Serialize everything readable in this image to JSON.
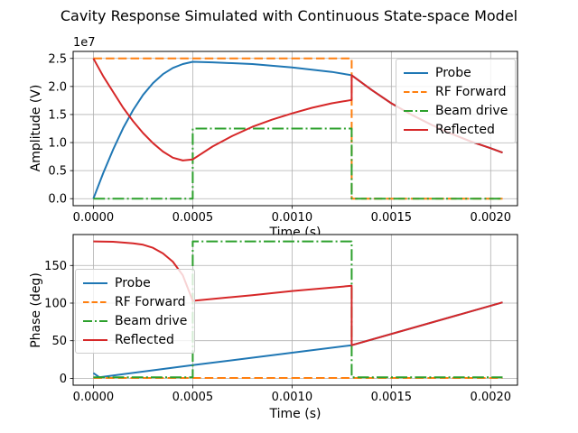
{
  "figure": {
    "title": "Cavity Response Simulated with Continuous State-space Model",
    "background": "#ffffff",
    "grid_color": "#b0b0b0",
    "spine_color": "#000000",
    "legend_border_color": "#cccccc"
  },
  "chart_data": [
    {
      "type": "line",
      "title": "",
      "xlabel": "Time (s)",
      "ylabel": "Amplitude (V)",
      "offset_text": "1e7",
      "y_units_note": "y values in units of 1e7 V",
      "grid": true,
      "legend_position": "upper-right",
      "xlim": [
        -0.000102,
        0.002135
      ],
      "ylim": [
        -0.125,
        2.625
      ],
      "xticks": {
        "values": [
          0,
          0.0005,
          0.001,
          0.0015,
          0.002
        ],
        "labels": [
          "0.0000",
          "0.0005",
          "0.0010",
          "0.0015",
          "0.0020"
        ]
      },
      "yticks": {
        "values": [
          0,
          0.5,
          1.0,
          1.5,
          2.0,
          2.5
        ],
        "labels": [
          "0.0",
          "0.5",
          "1.0",
          "1.5",
          "2.0",
          "2.5"
        ]
      },
      "series": [
        {
          "name": "Probe",
          "color": "#1f77b4",
          "style": "solid",
          "points": [
            [
              0,
              0
            ],
            [
              5e-05,
              0.46
            ],
            [
              0.0001,
              0.88
            ],
            [
              0.00015,
              1.26
            ],
            [
              0.0002,
              1.58
            ],
            [
              0.00025,
              1.85
            ],
            [
              0.0003,
              2.06
            ],
            [
              0.00035,
              2.22
            ],
            [
              0.0004,
              2.33
            ],
            [
              0.00045,
              2.4
            ],
            [
              0.0005,
              2.44
            ],
            [
              0.0006,
              2.43
            ],
            [
              0.0008,
              2.4
            ],
            [
              0.001,
              2.34
            ],
            [
              0.0012,
              2.26
            ],
            [
              0.0013,
              2.2
            ],
            [
              0.0014,
              1.94
            ],
            [
              0.0015,
              1.7
            ],
            [
              0.0016,
              1.5
            ],
            [
              0.0017,
              1.32
            ],
            [
              0.0018,
              1.16
            ],
            [
              0.0019,
              1.02
            ],
            [
              0.002,
              0.9
            ],
            [
              0.00206,
              0.82
            ]
          ]
        },
        {
          "name": "RF Forward",
          "color": "#ff7f0e",
          "style": "dashed",
          "points": [
            [
              0,
              2.5
            ],
            [
              0.0013,
              2.5
            ],
            [
              0.0013,
              0
            ],
            [
              0.00206,
              0
            ]
          ]
        },
        {
          "name": "Beam drive",
          "color": "#2ca02c",
          "style": "dashdot",
          "points": [
            [
              0,
              0
            ],
            [
              0.0005,
              0
            ],
            [
              0.0005,
              1.25
            ],
            [
              0.0013,
              1.25
            ],
            [
              0.0013,
              0
            ],
            [
              0.00206,
              0
            ]
          ]
        },
        {
          "name": "Reflected",
          "color": "#d62728",
          "style": "solid",
          "points": [
            [
              0,
              2.5
            ],
            [
              5e-05,
              2.18
            ],
            [
              0.0001,
              1.9
            ],
            [
              0.00015,
              1.62
            ],
            [
              0.0002,
              1.38
            ],
            [
              0.00025,
              1.17
            ],
            [
              0.0003,
              0.99
            ],
            [
              0.00035,
              0.84
            ],
            [
              0.0004,
              0.73
            ],
            [
              0.00045,
              0.68
            ],
            [
              0.0005,
              0.7
            ],
            [
              0.0006,
              0.93
            ],
            [
              0.0007,
              1.12
            ],
            [
              0.0008,
              1.28
            ],
            [
              0.0009,
              1.41
            ],
            [
              0.001,
              1.52
            ],
            [
              0.0011,
              1.62
            ],
            [
              0.0012,
              1.7
            ],
            [
              0.0013,
              1.76
            ],
            [
              0.0013,
              2.2
            ],
            [
              0.0014,
              1.94
            ],
            [
              0.0015,
              1.7
            ],
            [
              0.0016,
              1.5
            ],
            [
              0.0017,
              1.32
            ],
            [
              0.0018,
              1.16
            ],
            [
              0.0019,
              1.02
            ],
            [
              0.002,
              0.9
            ],
            [
              0.00206,
              0.82
            ]
          ]
        }
      ]
    },
    {
      "type": "line",
      "title": "",
      "xlabel": "Time (s)",
      "ylabel": "Phase (deg)",
      "offset_text": "",
      "grid": true,
      "legend_position": "center-left",
      "xlim": [
        -0.000102,
        0.002135
      ],
      "ylim": [
        -9.1,
        191.1
      ],
      "xticks": {
        "values": [
          0,
          0.0005,
          0.001,
          0.0015,
          0.002
        ],
        "labels": [
          "0.0000",
          "0.0005",
          "0.0010",
          "0.0015",
          "0.0020"
        ]
      },
      "yticks": {
        "values": [
          0,
          50,
          100,
          150
        ],
        "labels": [
          "0",
          "50",
          "100",
          "150"
        ]
      },
      "series": [
        {
          "name": "Probe",
          "color": "#1f77b4",
          "style": "solid",
          "points": [
            [
              0,
              7
            ],
            [
              3e-05,
              1.5
            ],
            [
              0.0005,
              17.5
            ],
            [
              0.001,
              34
            ],
            [
              0.0013,
              44
            ],
            [
              0.00206,
              101
            ]
          ]
        },
        {
          "name": "RF Forward",
          "color": "#ff7f0e",
          "style": "dashed",
          "points": [
            [
              0,
              0.5
            ],
            [
              0.00206,
              0.5
            ]
          ]
        },
        {
          "name": "Beam drive",
          "color": "#2ca02c",
          "style": "dashdot",
          "points": [
            [
              0,
              1.5
            ],
            [
              0.0005,
              1.5
            ],
            [
              0.0005,
              182
            ],
            [
              0.0013,
              182
            ],
            [
              0.0013,
              1.5
            ],
            [
              0.00206,
              1.5
            ]
          ]
        },
        {
          "name": "Reflected",
          "color": "#d62728",
          "style": "solid",
          "points": [
            [
              0,
              182
            ],
            [
              0.0001,
              181.5
            ],
            [
              0.0002,
              179.5
            ],
            [
              0.00025,
              177.5
            ],
            [
              0.0003,
              173.5
            ],
            [
              0.00035,
              166
            ],
            [
              0.0004,
              155
            ],
            [
              0.00045,
              137
            ],
            [
              0.0005,
              103
            ],
            [
              0.0008,
              110.5
            ],
            [
              0.001,
              116
            ],
            [
              0.0013,
              123
            ],
            [
              0.0013,
              44
            ],
            [
              0.00206,
              101
            ]
          ]
        }
      ]
    }
  ]
}
